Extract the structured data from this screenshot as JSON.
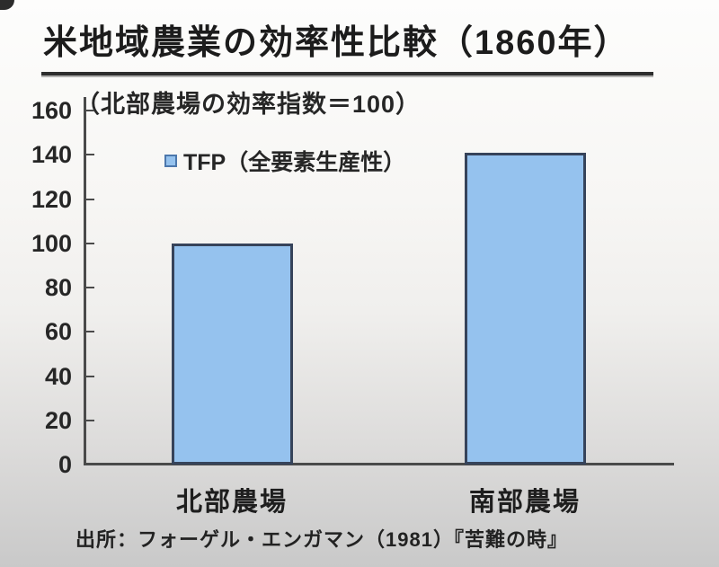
{
  "title": "米地域農業の効率性比較（1860年）",
  "subtitle": "（北部農場の効率指数＝100）",
  "legend": {
    "label": "TFP（全要素生産性）"
  },
  "source": "出所：フォーゲル・エンガマン（1981）『苦難の時』",
  "colors": {
    "bar_fill": "#95C2EE",
    "bar_border": "#36435A",
    "legend_marker_border": "#4C77AC",
    "axis": "#4a4a4a",
    "text": "#262626"
  },
  "chart_data": {
    "type": "bar",
    "categories": [
      "北部農場",
      "南部農場"
    ],
    "values": [
      100,
      141
    ],
    "series": [
      {
        "name": "TFP（全要素生産性）",
        "values": [
          100,
          141
        ]
      }
    ],
    "title": "米地域農業の効率性比較（1860年）",
    "subtitle": "（北部農場の効率指数＝100）",
    "xlabel": "",
    "ylabel": "",
    "ylim": [
      0,
      160
    ],
    "yticks": [
      0,
      20,
      40,
      60,
      80,
      100,
      120,
      140,
      160
    ],
    "grid": false,
    "legend_position": "top-inside",
    "source_note": "出所：フォーゲル・エンガマン（1981）『苦難の時』"
  }
}
